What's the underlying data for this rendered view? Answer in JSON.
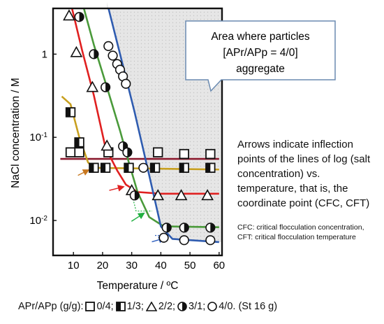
{
  "chart_data": {
    "type": "scatter",
    "xlabel": "Temperature / ºC",
    "ylabel": "NaCl concentration / M",
    "xlim": [
      3,
      61
    ],
    "ylim_log10": [
      -2.42,
      0.55
    ],
    "y_scale": "log",
    "x_ticks": [
      "10",
      "20",
      "30",
      "40",
      "50",
      "60"
    ],
    "x_tick_values": [
      10,
      20,
      30,
      40,
      50,
      60
    ],
    "y_ticks": [
      "1",
      "10-1",
      "10-2"
    ],
    "y_tick_values": [
      1,
      0.1,
      0.01
    ],
    "shaded_region_label": "Area where particles [APr/APp = 4/0] aggregate",
    "callout_lines": [
      "Area where particles",
      "[APr/APp = 4/0]",
      "aggregate"
    ],
    "series": [
      {
        "name": "0/4",
        "marker": "square",
        "points": [
          [
            9,
            0.066
          ],
          [
            12,
            0.066
          ],
          [
            22,
            0.066
          ],
          [
            39,
            0.066
          ],
          [
            48,
            0.063
          ],
          [
            57,
            0.063
          ]
        ],
        "curve": [
          [
            5.5,
            0.055
          ],
          [
            60,
            0.055
          ]
        ],
        "curve_color": "#8b1a2e"
      },
      {
        "name": "1/3",
        "marker": "half-square",
        "points": [
          [
            9,
            0.2
          ],
          [
            12,
            0.087
          ],
          [
            17,
            0.043
          ],
          [
            21,
            0.043
          ],
          [
            29,
            0.043
          ],
          [
            38,
            0.043
          ],
          [
            48,
            0.043
          ],
          [
            57,
            0.043
          ]
        ],
        "curve": [
          [
            6,
            0.31
          ],
          [
            9,
            0.25
          ],
          [
            12,
            0.1
          ],
          [
            15,
            0.05
          ],
          [
            17,
            0.043
          ],
          [
            60,
            0.041
          ]
        ],
        "curve_color": "#c8a020"
      },
      {
        "name": "2/2",
        "marker": "triangle",
        "points": [
          [
            8.5,
            2.9
          ],
          [
            11,
            1.05
          ],
          [
            16.5,
            0.4
          ],
          [
            21.5,
            0.079
          ],
          [
            30,
            0.023
          ],
          [
            39,
            0.02
          ],
          [
            47,
            0.02
          ],
          [
            56,
            0.02
          ]
        ],
        "curve": [
          [
            9,
            4.2
          ],
          [
            13,
            1.1
          ],
          [
            17,
            0.32
          ],
          [
            21,
            0.075
          ],
          [
            25,
            0.04
          ],
          [
            28,
            0.027
          ],
          [
            32,
            0.022
          ],
          [
            40,
            0.021
          ],
          [
            60,
            0.021
          ]
        ],
        "curve_color": "#e02020"
      },
      {
        "name": "3/1",
        "marker": "half-circle",
        "points": [
          [
            12,
            2.8
          ],
          [
            17,
            1.0
          ],
          [
            21,
            0.4
          ],
          [
            27,
            0.078
          ],
          [
            28.5,
            0.066
          ],
          [
            31,
            0.02
          ],
          [
            42,
            0.0082
          ],
          [
            48,
            0.0082
          ],
          [
            57,
            0.0082
          ]
        ],
        "curve": [
          [
            13,
            4.2
          ],
          [
            17,
            1.3
          ],
          [
            22,
            0.35
          ],
          [
            26,
            0.12
          ],
          [
            29,
            0.05
          ],
          [
            32,
            0.022
          ],
          [
            36,
            0.011
          ],
          [
            41,
            0.0085
          ],
          [
            60,
            0.0083
          ]
        ],
        "curve_color": "#4a9a3a"
      },
      {
        "name": "4/0",
        "marker": "circle",
        "points": [
          [
            22,
            1.25
          ],
          [
            23.5,
            0.96
          ],
          [
            25,
            0.76
          ],
          [
            26,
            0.65
          ],
          [
            27,
            0.54
          ],
          [
            28,
            0.44
          ],
          [
            34,
            0.043
          ],
          [
            41,
            0.0062
          ],
          [
            48,
            0.0058
          ],
          [
            57,
            0.0058
          ]
        ],
        "curve": [
          [
            21.5,
            4.2
          ],
          [
            26,
            1.0
          ],
          [
            31,
            0.2
          ],
          [
            36,
            0.035
          ],
          [
            40,
            0.0085
          ],
          [
            44,
            0.006
          ],
          [
            60,
            0.0055
          ]
        ],
        "curve_color": "#2f5cb0"
      }
    ],
    "arrows": [
      {
        "color": "#c87820",
        "to": [
          16,
          0.043
        ]
      },
      {
        "color": "#e02020",
        "to": [
          28,
          0.027
        ]
      },
      {
        "color": "#20b040",
        "to": [
          35,
          0.013
        ]
      },
      {
        "color": "#3060c0",
        "to": [
          42,
          0.0065
        ]
      }
    ],
    "note": "Arrows indicate  inflection points of the lines of log (salt concentration) vs. temperature, that is, the coordinate point (CFC, CFT)",
    "subnote": "CFC: critical flocculation concentration, CFT: critical flocculation temperature",
    "legend": {
      "prefix": "APr/APp (g/g):",
      "items": [
        "0/4;",
        "1/3;",
        "2/2;",
        "3/1;",
        "4/0. (St 16 g)"
      ]
    }
  }
}
